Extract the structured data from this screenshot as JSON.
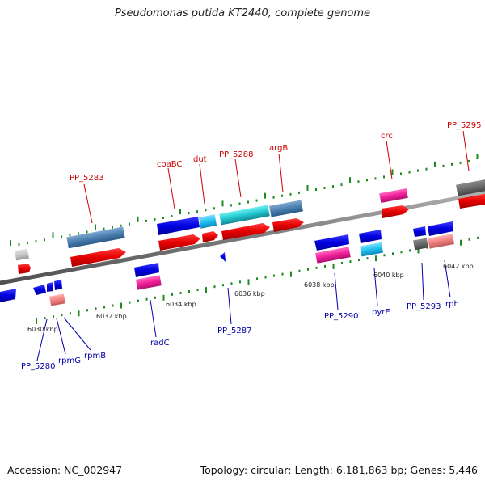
{
  "title": "Pseudomonas putida KT2440, complete genome",
  "footer": {
    "accession": "Accession: NC_002947",
    "summary": "Topology: circular; Length: 6,181,863 bp; Genes: 5,446"
  },
  "colors": {
    "backbone": "#808080",
    "tick": "#1f8a1f",
    "label_top": "#cc0000",
    "label_bottom": "#0000aa"
  },
  "kbp_labels": [
    "6030 kbp",
    "6032 kbp",
    "6034 kbp",
    "6036 kbp",
    "6038 kbp",
    "6040 kbp",
    "6042 kbp"
  ],
  "labels_top": [
    "PP_5283",
    "coaBC",
    "dut",
    "PP_5288",
    "argB",
    "crc",
    "PP_5295"
  ],
  "labels_bottom": [
    "PP_5280",
    "rpmG",
    "rpmB",
    "radC",
    "PP_5287",
    "PP_5290",
    "pyrE",
    "PP_5293",
    "rph"
  ]
}
